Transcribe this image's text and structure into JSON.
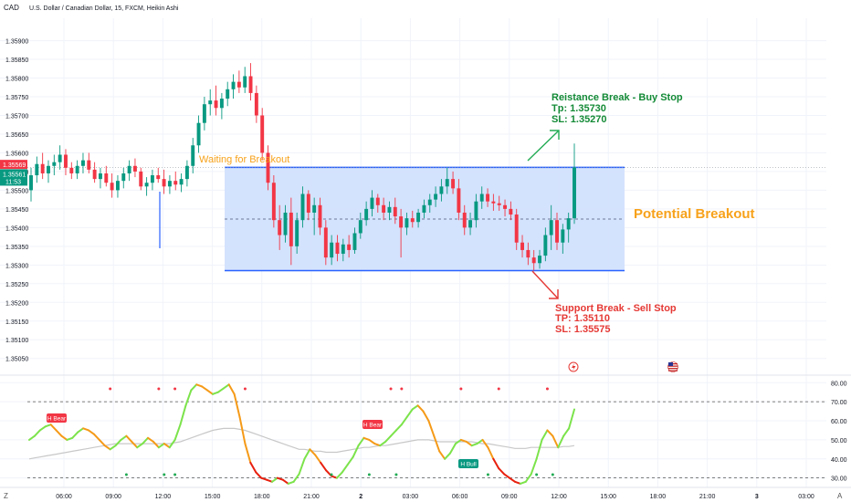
{
  "header": {
    "currency": "CAD",
    "symbol_title": "U.S. Dollar / Canadian Dollar, 15, FXCM, Heikin Ashi"
  },
  "chart_data": [
    {
      "type": "candlestick",
      "title": "U.S. Dollar / Canadian Dollar, 15, FXCM, Heikin Ashi",
      "y_ticks": [
        1.3505,
        1.351,
        1.3515,
        1.352,
        1.3525,
        1.353,
        1.3535,
        1.354,
        1.3545,
        1.355,
        1.3555,
        1.356,
        1.3565,
        1.357,
        1.3575,
        1.358,
        1.3585,
        1.359
      ],
      "y_tick_labels": [
        "1.35050",
        "1.35100",
        "1.35150",
        "1.35200",
        "1.35250",
        "1.35300",
        "1.35350",
        "1.35400",
        "1.35450",
        "1.35500",
        "1.35550",
        "1.35600",
        "1.35650",
        "1.35700",
        "1.35750",
        "1.35800",
        "1.35850",
        "1.35900"
      ],
      "ylim": [
        1.3502,
        1.3596
      ],
      "x_labels": [
        "06:00",
        "09:00",
        "12:00",
        "15:00",
        "18:00",
        "21:00",
        "2",
        "03:00",
        "06:00",
        "09:00",
        "12:00",
        "15:00",
        "18:00",
        "21:00",
        "3",
        "03:00"
      ],
      "price_badges": [
        {
          "value": "1.35569",
          "color": "#f23645"
        },
        {
          "value": "1.35561",
          "color": "#089981",
          "sub": "11:53"
        }
      ],
      "range_box": {
        "top": 1.35561,
        "bottom": 1.35285,
        "mid": 1.35423
      },
      "annotations": {
        "waiting": "Waiting for Breakout",
        "potential": "Potential Breakout",
        "resistance_title": "Reistance Break - Buy Stop",
        "resistance_tp": "Tp: 1.35730",
        "resistance_sl": "SL: 1.35270",
        "support_title": "Support Break - Sell Stop",
        "support_tp": "TP: 1.35110",
        "support_sl": "SL: 1.35575"
      },
      "colors": {
        "up": "#089981",
        "down": "#f23645",
        "box": "#cfe0fd",
        "box_line": "#2962ff",
        "resistance": "#089981",
        "support": "#f23645",
        "potential": "#f7a21b",
        "waiting": "#f7a21b"
      },
      "candles": [
        {
          "o": 1.355,
          "h": 1.3556,
          "l": 1.3547,
          "c": 1.3554
        },
        {
          "o": 1.3554,
          "h": 1.3559,
          "l": 1.3552,
          "c": 1.3557
        },
        {
          "o": 1.3557,
          "h": 1.356,
          "l": 1.3553,
          "c": 1.35545
        },
        {
          "o": 1.35545,
          "h": 1.3558,
          "l": 1.3552,
          "c": 1.35565
        },
        {
          "o": 1.35565,
          "h": 1.35595,
          "l": 1.3554,
          "c": 1.35575
        },
        {
          "o": 1.35575,
          "h": 1.3562,
          "l": 1.35555,
          "c": 1.35595
        },
        {
          "o": 1.35595,
          "h": 1.3561,
          "l": 1.3554,
          "c": 1.3556
        },
        {
          "o": 1.3556,
          "h": 1.35575,
          "l": 1.3553,
          "c": 1.35545
        },
        {
          "o": 1.35545,
          "h": 1.3558,
          "l": 1.3553,
          "c": 1.35565
        },
        {
          "o": 1.35565,
          "h": 1.356,
          "l": 1.35545,
          "c": 1.3558
        },
        {
          "o": 1.3558,
          "h": 1.356,
          "l": 1.35545,
          "c": 1.35555
        },
        {
          "o": 1.35555,
          "h": 1.35575,
          "l": 1.3552,
          "c": 1.3553
        },
        {
          "o": 1.3553,
          "h": 1.3556,
          "l": 1.35505,
          "c": 1.35545
        },
        {
          "o": 1.35545,
          "h": 1.35565,
          "l": 1.3551,
          "c": 1.3552
        },
        {
          "o": 1.3552,
          "h": 1.35545,
          "l": 1.3548,
          "c": 1.355
        },
        {
          "o": 1.355,
          "h": 1.3554,
          "l": 1.3548,
          "c": 1.35525
        },
        {
          "o": 1.35525,
          "h": 1.3556,
          "l": 1.35505,
          "c": 1.35545
        },
        {
          "o": 1.35545,
          "h": 1.3558,
          "l": 1.35525,
          "c": 1.35565
        },
        {
          "o": 1.35565,
          "h": 1.35585,
          "l": 1.35535,
          "c": 1.3555
        },
        {
          "o": 1.3555,
          "h": 1.3556,
          "l": 1.355,
          "c": 1.3551
        },
        {
          "o": 1.3551,
          "h": 1.35535,
          "l": 1.35485,
          "c": 1.3552
        },
        {
          "o": 1.3552,
          "h": 1.35555,
          "l": 1.355,
          "c": 1.3554
        },
        {
          "o": 1.3554,
          "h": 1.3556,
          "l": 1.3552,
          "c": 1.3553
        },
        {
          "o": 1.3553,
          "h": 1.35555,
          "l": 1.3549,
          "c": 1.3551
        },
        {
          "o": 1.3551,
          "h": 1.3554,
          "l": 1.3549,
          "c": 1.35525
        },
        {
          "o": 1.35525,
          "h": 1.3555,
          "l": 1.355,
          "c": 1.35515
        },
        {
          "o": 1.35515,
          "h": 1.35545,
          "l": 1.35495,
          "c": 1.3553
        },
        {
          "o": 1.3553,
          "h": 1.3558,
          "l": 1.3551,
          "c": 1.35565
        },
        {
          "o": 1.35565,
          "h": 1.3564,
          "l": 1.35545,
          "c": 1.3562
        },
        {
          "o": 1.3562,
          "h": 1.357,
          "l": 1.356,
          "c": 1.3568
        },
        {
          "o": 1.3568,
          "h": 1.3575,
          "l": 1.3566,
          "c": 1.3573
        },
        {
          "o": 1.3573,
          "h": 1.3577,
          "l": 1.357,
          "c": 1.3574
        },
        {
          "o": 1.3574,
          "h": 1.3578,
          "l": 1.357,
          "c": 1.3572
        },
        {
          "o": 1.3572,
          "h": 1.3576,
          "l": 1.3569,
          "c": 1.35745
        },
        {
          "o": 1.35745,
          "h": 1.3579,
          "l": 1.35725,
          "c": 1.3577
        },
        {
          "o": 1.3577,
          "h": 1.3581,
          "l": 1.35745,
          "c": 1.3579
        },
        {
          "o": 1.3579,
          "h": 1.3582,
          "l": 1.3576,
          "c": 1.35775
        },
        {
          "o": 1.35775,
          "h": 1.3583,
          "l": 1.3576,
          "c": 1.35805
        },
        {
          "o": 1.35805,
          "h": 1.3584,
          "l": 1.3574,
          "c": 1.3576
        },
        {
          "o": 1.3576,
          "h": 1.3578,
          "l": 1.3568,
          "c": 1.357
        },
        {
          "o": 1.357,
          "h": 1.3572,
          "l": 1.3558,
          "c": 1.356
        },
        {
          "o": 1.356,
          "h": 1.3562,
          "l": 1.355,
          "c": 1.3552
        },
        {
          "o": 1.3552,
          "h": 1.3554,
          "l": 1.354,
          "c": 1.3542
        },
        {
          "o": 1.3542,
          "h": 1.3546,
          "l": 1.3534,
          "c": 1.3538
        },
        {
          "o": 1.3538,
          "h": 1.3546,
          "l": 1.3536,
          "c": 1.3544
        },
        {
          "o": 1.3544,
          "h": 1.3548,
          "l": 1.353,
          "c": 1.3535
        },
        {
          "o": 1.3535,
          "h": 1.3544,
          "l": 1.3533,
          "c": 1.3542
        },
        {
          "o": 1.3542,
          "h": 1.3551,
          "l": 1.354,
          "c": 1.3549
        },
        {
          "o": 1.3549,
          "h": 1.355,
          "l": 1.3542,
          "c": 1.3544
        },
        {
          "o": 1.3544,
          "h": 1.3548,
          "l": 1.3538,
          "c": 1.3546
        },
        {
          "o": 1.3546,
          "h": 1.3548,
          "l": 1.3538,
          "c": 1.354
        },
        {
          "o": 1.354,
          "h": 1.3542,
          "l": 1.353,
          "c": 1.3532
        },
        {
          "o": 1.3532,
          "h": 1.3538,
          "l": 1.353,
          "c": 1.3536
        },
        {
          "o": 1.3536,
          "h": 1.3538,
          "l": 1.3531,
          "c": 1.3533
        },
        {
          "o": 1.3533,
          "h": 1.3537,
          "l": 1.3531,
          "c": 1.35355
        },
        {
          "o": 1.35355,
          "h": 1.3538,
          "l": 1.3532,
          "c": 1.3534
        },
        {
          "o": 1.3534,
          "h": 1.354,
          "l": 1.3533,
          "c": 1.35385
        },
        {
          "o": 1.35385,
          "h": 1.3544,
          "l": 1.3537,
          "c": 1.3542
        },
        {
          "o": 1.3542,
          "h": 1.3547,
          "l": 1.35405,
          "c": 1.3545
        },
        {
          "o": 1.3545,
          "h": 1.355,
          "l": 1.3543,
          "c": 1.3548
        },
        {
          "o": 1.3548,
          "h": 1.3549,
          "l": 1.3544,
          "c": 1.3546
        },
        {
          "o": 1.3546,
          "h": 1.3548,
          "l": 1.3542,
          "c": 1.3544
        },
        {
          "o": 1.3544,
          "h": 1.3547,
          "l": 1.3542,
          "c": 1.35455
        },
        {
          "o": 1.35455,
          "h": 1.3548,
          "l": 1.3541,
          "c": 1.3543
        },
        {
          "o": 1.3543,
          "h": 1.3545,
          "l": 1.3532,
          "c": 1.354
        },
        {
          "o": 1.354,
          "h": 1.3544,
          "l": 1.3538,
          "c": 1.35425
        },
        {
          "o": 1.35425,
          "h": 1.35445,
          "l": 1.354,
          "c": 1.35415
        },
        {
          "o": 1.35415,
          "h": 1.3545,
          "l": 1.354,
          "c": 1.3544
        },
        {
          "o": 1.3544,
          "h": 1.35475,
          "l": 1.35425,
          "c": 1.3546
        },
        {
          "o": 1.3546,
          "h": 1.3549,
          "l": 1.3544,
          "c": 1.35475
        },
        {
          "o": 1.35475,
          "h": 1.3551,
          "l": 1.35455,
          "c": 1.3549
        },
        {
          "o": 1.3549,
          "h": 1.3553,
          "l": 1.3547,
          "c": 1.3551
        },
        {
          "o": 1.3551,
          "h": 1.3556,
          "l": 1.3549,
          "c": 1.3553
        },
        {
          "o": 1.3553,
          "h": 1.3555,
          "l": 1.3549,
          "c": 1.35505
        },
        {
          "o": 1.35505,
          "h": 1.3553,
          "l": 1.3542,
          "c": 1.3544
        },
        {
          "o": 1.3544,
          "h": 1.3546,
          "l": 1.3538,
          "c": 1.354
        },
        {
          "o": 1.354,
          "h": 1.3544,
          "l": 1.3538,
          "c": 1.3542
        },
        {
          "o": 1.3542,
          "h": 1.3549,
          "l": 1.354,
          "c": 1.3547
        },
        {
          "o": 1.3547,
          "h": 1.3551,
          "l": 1.3545,
          "c": 1.3549
        },
        {
          "o": 1.3549,
          "h": 1.35505,
          "l": 1.35455,
          "c": 1.3547
        },
        {
          "o": 1.3547,
          "h": 1.3549,
          "l": 1.35445,
          "c": 1.35465
        },
        {
          "o": 1.35465,
          "h": 1.35485,
          "l": 1.35445,
          "c": 1.3546
        },
        {
          "o": 1.3546,
          "h": 1.35475,
          "l": 1.3543,
          "c": 1.3545
        },
        {
          "o": 1.3545,
          "h": 1.3547,
          "l": 1.3542,
          "c": 1.35435
        },
        {
          "o": 1.35435,
          "h": 1.3545,
          "l": 1.3534,
          "c": 1.3536
        },
        {
          "o": 1.3536,
          "h": 1.3538,
          "l": 1.3532,
          "c": 1.3534
        },
        {
          "o": 1.3534,
          "h": 1.3536,
          "l": 1.353,
          "c": 1.3532
        },
        {
          "o": 1.3532,
          "h": 1.3534,
          "l": 1.35285,
          "c": 1.35305
        },
        {
          "o": 1.35305,
          "h": 1.3534,
          "l": 1.3529,
          "c": 1.35325
        },
        {
          "o": 1.35325,
          "h": 1.354,
          "l": 1.3531,
          "c": 1.3538
        },
        {
          "o": 1.3538,
          "h": 1.3546,
          "l": 1.3534,
          "c": 1.3542
        },
        {
          "o": 1.3542,
          "h": 1.3544,
          "l": 1.3534,
          "c": 1.3536
        },
        {
          "o": 1.3536,
          "h": 1.3541,
          "l": 1.3533,
          "c": 1.35395
        },
        {
          "o": 1.35395,
          "h": 1.3544,
          "l": 1.3536,
          "c": 1.35425
        },
        {
          "o": 1.35425,
          "h": 1.35625,
          "l": 1.3541,
          "c": 1.35561
        }
      ]
    },
    {
      "type": "line",
      "y_ticks": [
        30,
        40,
        50,
        60,
        70,
        80
      ],
      "y_tick_labels": [
        "30.00",
        "40.00",
        "50.00",
        "60.00",
        "70.00",
        "80.00"
      ],
      "ylim": [
        26,
        83
      ],
      "levels": [
        70,
        30
      ],
      "signals": [
        {
          "label": "H Bear",
          "color": "#f23645"
        },
        {
          "label": "H Bear",
          "color": "#f23645"
        },
        {
          "label": "H Bull",
          "color": "#089981"
        }
      ],
      "rsi": [
        50,
        52,
        55,
        57,
        58,
        55,
        52,
        50,
        51,
        54,
        56,
        55,
        53,
        50,
        47,
        45,
        47,
        50,
        52,
        49,
        46,
        48,
        51,
        49,
        46,
        48,
        46,
        50,
        58,
        68,
        76,
        79,
        78,
        76,
        74,
        75,
        77,
        79,
        74,
        62,
        48,
        38,
        33,
        30,
        29,
        28,
        30,
        29,
        27,
        28,
        32,
        40,
        45,
        42,
        38,
        34,
        31,
        30,
        33,
        37,
        41,
        47,
        51,
        50,
        48,
        47,
        49,
        52,
        55,
        58,
        62,
        66,
        68,
        65,
        60,
        52,
        44,
        40,
        43,
        48,
        50,
        49,
        47,
        48,
        50,
        46,
        40,
        35,
        32,
        30,
        28,
        27,
        28,
        32,
        40,
        50,
        55,
        52,
        46,
        52,
        56,
        66
      ],
      "ma": [
        40,
        40.5,
        41,
        41.5,
        42,
        42.5,
        43,
        43.5,
        44,
        44.5,
        45,
        45.5,
        46,
        46.5,
        47,
        47.5,
        48,
        48,
        48,
        48,
        48,
        48,
        48,
        48,
        48,
        48,
        48,
        48.5,
        49,
        50,
        51,
        52,
        53,
        54,
        55,
        55.5,
        56,
        56,
        56,
        55.5,
        55,
        54,
        53,
        52,
        51,
        50,
        49,
        48,
        47,
        46,
        45,
        45,
        44.5,
        44,
        44,
        43.5,
        43.5,
        43.5,
        44,
        44.5,
        45,
        45.5,
        46,
        46,
        46.5,
        47,
        47,
        47.5,
        48,
        48.5,
        49,
        49.5,
        50,
        50,
        50,
        49.5,
        49,
        49,
        49,
        49,
        49,
        49,
        49,
        48.5,
        48,
        48,
        47.5,
        47,
        46.5,
        46,
        45.5,
        45.5,
        45.5,
        46,
        46,
        46,
        46,
        46,
        46,
        46.5,
        46.5,
        47
      ]
    }
  ],
  "time_axis": {
    "left_icon": "Z",
    "right_icon": "A"
  }
}
